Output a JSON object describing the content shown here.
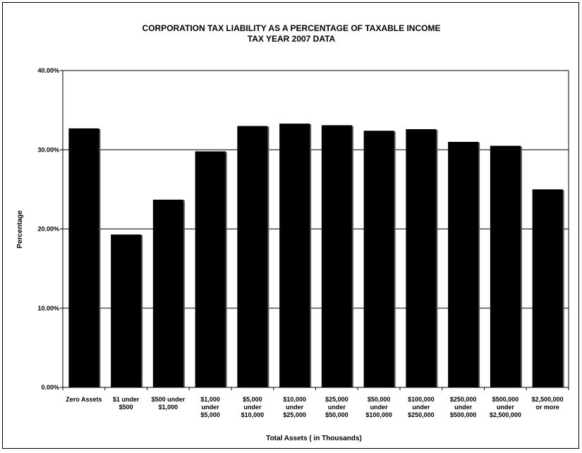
{
  "chart_data": {
    "type": "bar",
    "title": "CORPORATION TAX LIABILITY AS A PERCENTAGE OF TAXABLE INCOME",
    "subtitle": "TAX YEAR 2007 DATA",
    "xlabel": "Total Assets ( in Thousands)",
    "ylabel": "Percentage",
    "ylim": [
      0,
      40
    ],
    "yticks": [
      0,
      10,
      20,
      30,
      40
    ],
    "ytick_labels": [
      "0.00%",
      "10.00%",
      "20.00%",
      "30.00%",
      "40.00%"
    ],
    "grid": true,
    "bar_color": "#000000",
    "categories": [
      [
        "Zero Assets"
      ],
      [
        "$1 under",
        "$500"
      ],
      [
        "$500 under",
        "$1,000"
      ],
      [
        "$1,000",
        "under",
        "$5,000"
      ],
      [
        "$5,000",
        "under",
        "$10,000"
      ],
      [
        "$10,000",
        "under",
        "$25,000"
      ],
      [
        "$25,000",
        "under",
        "$50,000"
      ],
      [
        "$50,000",
        "under",
        "$100,000"
      ],
      [
        "$100,000",
        "under",
        "$250,000"
      ],
      [
        "$250,000",
        "under",
        "$500,000"
      ],
      [
        "$500,000",
        "under",
        "$2,500,000"
      ],
      [
        "$2,500,000",
        "or more"
      ]
    ],
    "values": [
      32.7,
      19.3,
      23.7,
      29.8,
      33.0,
      33.3,
      33.1,
      32.4,
      32.6,
      31.0,
      30.5,
      25.0
    ]
  }
}
